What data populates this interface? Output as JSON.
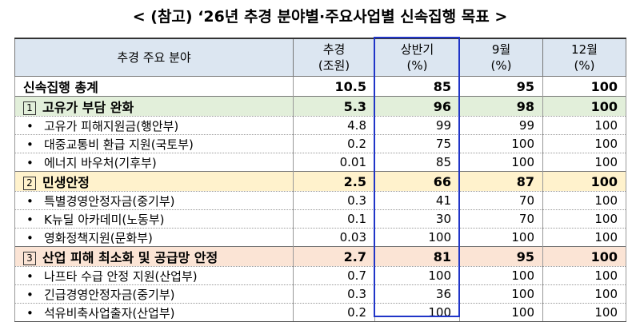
{
  "title": "< (참고) ‘26년 추경 분야별·주요사업별 신속집행 목표 >",
  "table": {
    "header": [
      [
        "추경 주요 분야"
      ],
      [
        "추경",
        "(조원)"
      ],
      [
        "상반기",
        "(%)"
      ],
      [
        "9월",
        "(%)"
      ],
      [
        "12월",
        "(%)"
      ]
    ],
    "rows": [
      {
        "kind": "total",
        "label": "신속집행 총계",
        "cells": [
          "10.5",
          "85",
          "95",
          "100"
        ]
      },
      {
        "kind": "section",
        "color": "#e2efda",
        "marker": "1",
        "label": "고유가 부담 완화",
        "cells": [
          "5.3",
          "96",
          "98",
          "100"
        ]
      },
      {
        "kind": "item",
        "bullet": "•",
        "label": "고유가 피해지원금(행안부)",
        "cells": [
          "4.8",
          "99",
          "99",
          "100"
        ]
      },
      {
        "kind": "item",
        "bullet": "•",
        "label": "대중교통비 환급 지원(국토부)",
        "cells": [
          "0.2",
          "75",
          "100",
          "100"
        ]
      },
      {
        "kind": "item",
        "bullet": "•",
        "label": "에너지 바우처(기후부)",
        "cells": [
          "0.01",
          "85",
          "100",
          "100"
        ]
      },
      {
        "kind": "section",
        "color": "#fff2cc",
        "marker": "2",
        "label": "민생안정",
        "cells": [
          "2.5",
          "66",
          "87",
          "100"
        ]
      },
      {
        "kind": "item",
        "bullet": "•",
        "label": "특별경영안정자금(중기부)",
        "cells": [
          "0.3",
          "41",
          "70",
          "100"
        ]
      },
      {
        "kind": "item",
        "bullet": "•",
        "label": "K뉴딜 아카데미(노동부)",
        "cells": [
          "0.1",
          "30",
          "70",
          "100"
        ]
      },
      {
        "kind": "item",
        "bullet": "•",
        "label": "영화정책지원(문화부)",
        "cells": [
          "0.03",
          "100",
          "100",
          "100"
        ]
      },
      {
        "kind": "section",
        "color": "#fbe4d5",
        "marker": "3",
        "label": "산업 피해 최소화 및 공급망 안정",
        "cells": [
          "2.7",
          "81",
          "95",
          "100"
        ]
      },
      {
        "kind": "item",
        "bullet": "•",
        "label": "나프타 수급 안정 지원(산업부)",
        "cells": [
          "0.7",
          "100",
          "100",
          "100"
        ]
      },
      {
        "kind": "item",
        "bullet": "•",
        "label": "긴급경영안정자금(중기부)",
        "cells": [
          "0.3",
          "36",
          "100",
          "100"
        ]
      },
      {
        "kind": "item",
        "bullet": "•",
        "label": "석유비축사업출자(산업부)",
        "cells": [
          "0.2",
          "100",
          "100",
          "100"
        ]
      }
    ]
  }
}
